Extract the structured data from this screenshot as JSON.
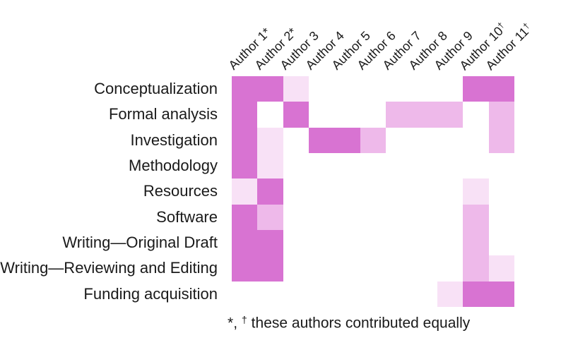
{
  "chart_data": {
    "type": "heatmap",
    "title": "",
    "rows": [
      "Conceptualization",
      "Formal analysis",
      "Investigation",
      "Methodology",
      "Resources",
      "Software",
      "Writing—Original Draft",
      "Writing—Reviewing and Editing",
      "Funding acquisition"
    ],
    "columns": [
      "Author 1*",
      "Author 2*",
      "Author 3",
      "Author 4",
      "Author 5",
      "Author 6",
      "Author 7",
      "Author 8",
      "Author 9",
      "Author 10†",
      "Author 11†"
    ],
    "values": [
      [
        1,
        1,
        0.25,
        0,
        0,
        0,
        0,
        0,
        0,
        1,
        1
      ],
      [
        1,
        0,
        1,
        0,
        0,
        0,
        0.5,
        0.5,
        0.5,
        0,
        0.5
      ],
      [
        1,
        0.25,
        0,
        1,
        1,
        0.5,
        0,
        0,
        0,
        0,
        0.5
      ],
      [
        1,
        0.25,
        0,
        0,
        0,
        0,
        0,
        0,
        0,
        0,
        0
      ],
      [
        0.25,
        1,
        0,
        0,
        0,
        0,
        0,
        0,
        0,
        0.25,
        0
      ],
      [
        1,
        0.5,
        0,
        0,
        0,
        0,
        0,
        0,
        0,
        0.5,
        0
      ],
      [
        1,
        1,
        0,
        0,
        0,
        0,
        0,
        0,
        0,
        0.5,
        0
      ],
      [
        1,
        1,
        0,
        0,
        0,
        0,
        0,
        0,
        0,
        0.5,
        0.25
      ],
      [
        0,
        0,
        0,
        0,
        0,
        0,
        0,
        0,
        0.25,
        1,
        1
      ]
    ],
    "value_colors": {
      "0": "#ffffff",
      "0.25": "#f8e1f6",
      "0.5": "#eeb9ea",
      "1": "#d873d2"
    },
    "legend_position": "none",
    "grid_lines": "off"
  },
  "caption": "*, † these authors contributed equally",
  "text_color": "#1a1a1a",
  "background_color": "#ffffff"
}
